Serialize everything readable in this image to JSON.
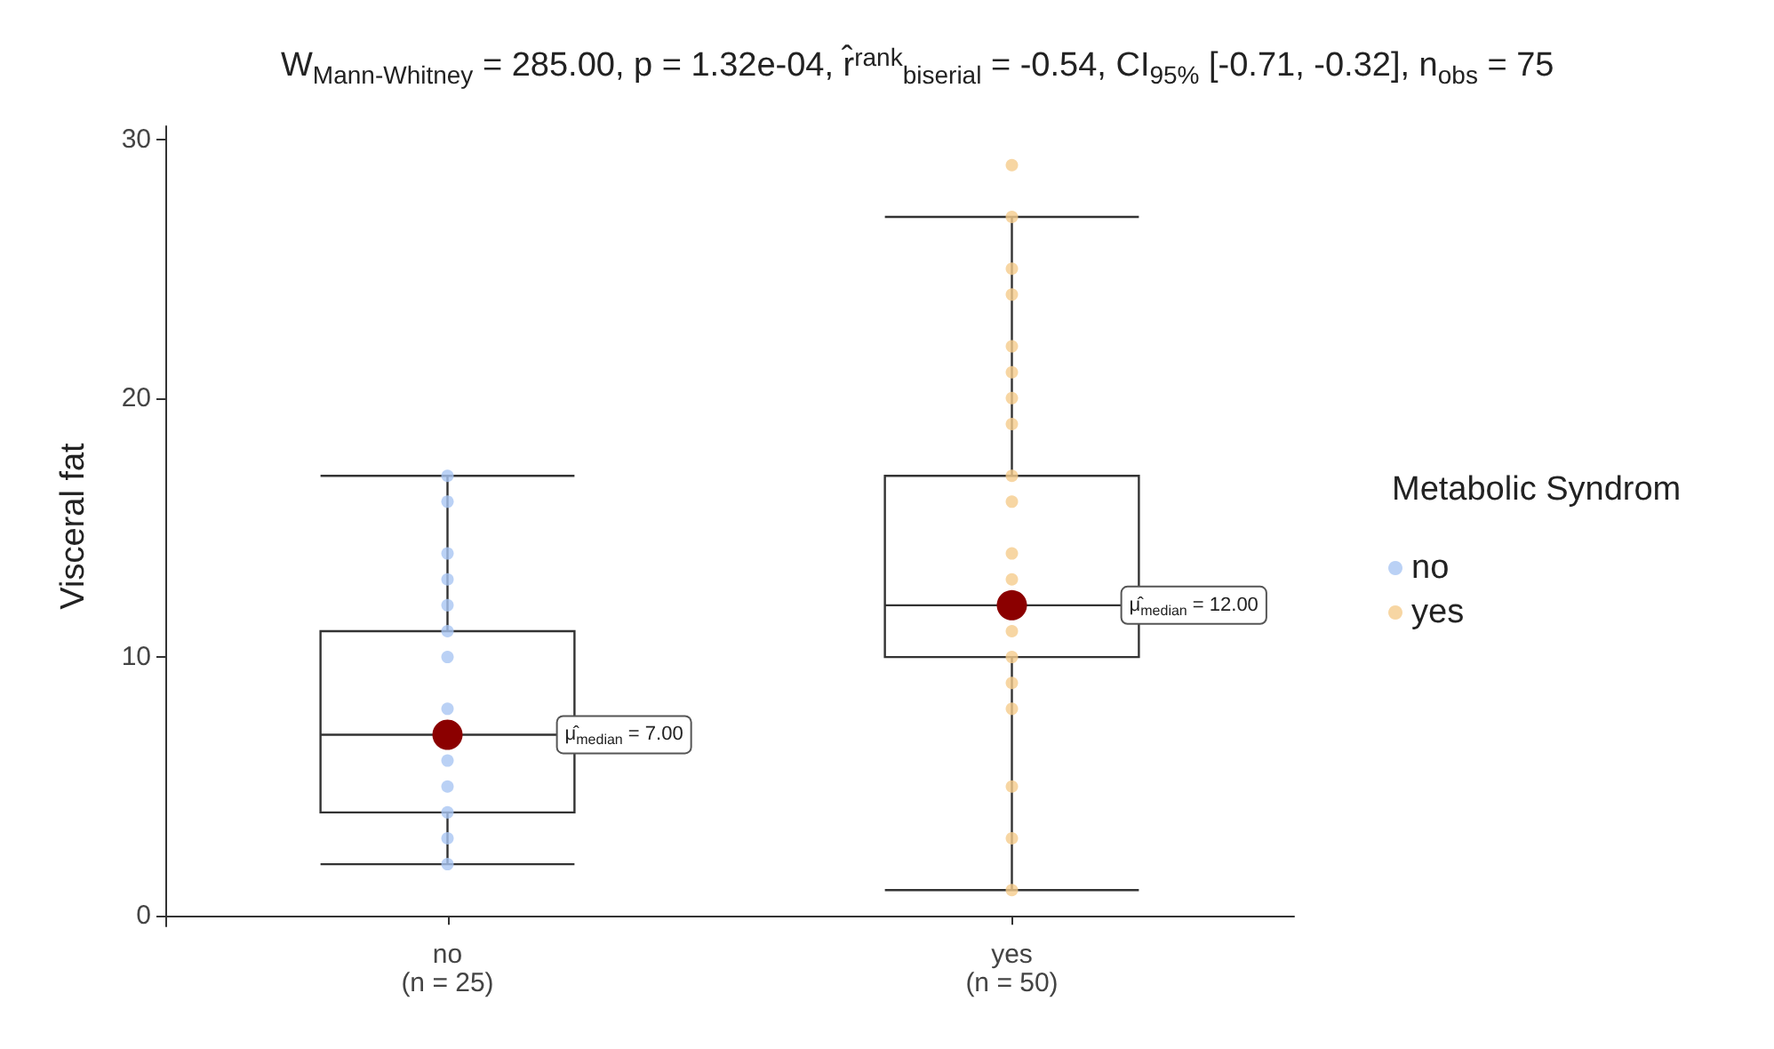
{
  "chart_data": {
    "type": "box",
    "title": "W$_{Mann-Whitney}$ = 285.00, p = 1.32e-04, r̂$^{rank}$$_{biserial}$ = -0.54, CI$_{95%}$ [-0.71, -0.32], n$_{obs}$ = 75",
    "ylabel": "Visceral fat",
    "legend_title": "Metabolic Syndrom",
    "categories": [
      "no\n(n = 25)",
      "yes\n(n = 50)"
    ],
    "ylim": [
      -0.4,
      30.5
    ],
    "yticks": [
      0,
      10,
      20,
      30
    ],
    "grid": false,
    "legend": "right",
    "series": [
      {
        "color": "#333333",
        "boxes": [
          {
            "low": 2,
            "q1": 4,
            "median": 7,
            "q3": 11,
            "high": 17
          },
          {
            "low": 1,
            "q1": 10,
            "median": 12,
            "q3": 17,
            "high": 27
          }
        ]
      },
      {
        "type": "scatter",
        "name": "no",
        "color": "#a9c6f2",
        "x": [
          "no\n(n = 25)",
          "no\n(n = 25)",
          "no\n(n = 25)",
          "no\n(n = 25)",
          "no\n(n = 25)",
          "no\n(n = 25)",
          "no\n(n = 25)",
          "no\n(n = 25)",
          "no\n(n = 25)",
          "no\n(n = 25)",
          "no\n(n = 25)",
          "no\n(n = 25)",
          "no\n(n = 25)"
        ],
        "values": [
          17,
          16,
          14,
          13,
          12,
          11,
          10,
          8,
          6,
          5,
          4,
          3,
          2
        ]
      },
      {
        "type": "scatter",
        "name": "yes",
        "color": "#f5cc8c",
        "x": [
          "yes\n(n = 50)",
          "yes\n(n = 50)",
          "yes\n(n = 50)",
          "yes\n(n = 50)",
          "yes\n(n = 50)",
          "yes\n(n = 50)",
          "yes\n(n = 50)",
          "yes\n(n = 50)",
          "yes\n(n = 50)",
          "yes\n(n = 50)",
          "yes\n(n = 50)",
          "yes\n(n = 50)",
          "yes\n(n = 50)",
          "yes\n(n = 50)",
          "yes\n(n = 50)",
          "yes\n(n = 50)",
          "yes\n(n = 50)",
          "yes\n(n = 50)",
          "yes\n(n = 50)"
        ],
        "values": [
          29,
          27,
          25,
          24,
          22,
          21,
          20,
          19,
          17,
          16,
          14,
          13,
          11,
          10,
          9,
          8,
          5,
          3,
          1
        ]
      },
      {
        "type": "scatter",
        "color": "#8b0000",
        "x": [
          "no\n(n = 25)",
          "yes\n(n = 50)"
        ],
        "values": [
          7,
          12
        ]
      }
    ],
    "annotations": [
      "μ̂$_{median}$ = 7.00",
      "μ̂$_{median}$ = 12.00"
    ]
  }
}
